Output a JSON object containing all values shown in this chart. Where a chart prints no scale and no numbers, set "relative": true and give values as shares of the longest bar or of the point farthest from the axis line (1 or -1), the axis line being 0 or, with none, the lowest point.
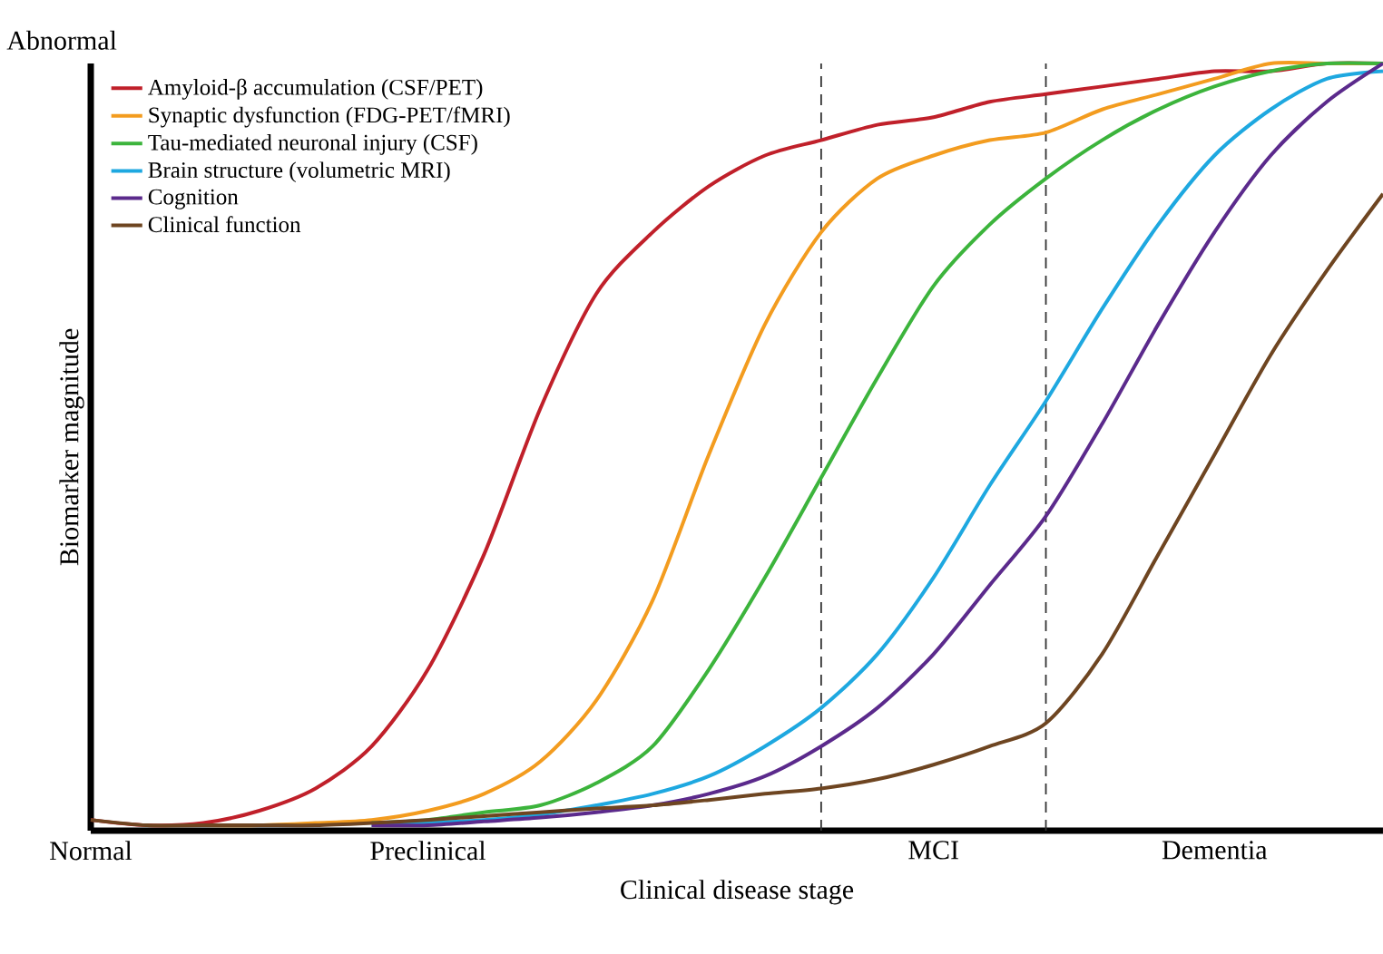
{
  "chart_data": {
    "type": "line",
    "relative": true,
    "xlabel": "Clinical disease stage",
    "ylabel": "Biomarker magnitude",
    "annotations": [
      "Abnormal"
    ],
    "categories": [
      "Normal",
      null,
      null,
      null,
      null,
      null,
      "Preclinical",
      null,
      null,
      null,
      null,
      null,
      null,
      null,
      null,
      "MCI",
      null,
      null,
      null,
      null,
      "Dementia",
      null,
      null,
      null
    ],
    "legend": "top left",
    "marker": "none",
    "line_style": "solid",
    "series": [
      {
        "name": "Amyloid-β accumulation (CSF/PET)",
        "color": "#c0202a",
        "values": [
          0.014,
          0.007,
          0.01,
          0.026,
          0.055,
          0.11,
          0.21,
          0.36,
          0.55,
          0.7,
          0.78,
          0.84,
          0.88,
          0.9,
          0.92,
          0.93,
          0.95,
          0.96,
          0.97,
          0.98,
          0.99,
          0.99,
          1.0,
          1.0
        ]
      },
      {
        "name": "Synaptic dysfunction (FDG-PET/fMRI)",
        "color": "#f39c1f",
        "values": [
          null,
          null,
          0.007,
          0.007,
          0.01,
          0.014,
          0.026,
          0.048,
          0.09,
          0.17,
          0.3,
          0.49,
          0.66,
          0.78,
          0.85,
          0.88,
          0.9,
          0.91,
          0.94,
          0.96,
          0.98,
          1.0,
          1.0,
          1.0
        ]
      },
      {
        "name": "Tau-mediated neuronal injury (CSF)",
        "color": "#3cb43c",
        "values": [
          null,
          null,
          null,
          null,
          null,
          0.01,
          0.014,
          0.024,
          0.033,
          0.062,
          0.11,
          0.21,
          0.33,
          0.46,
          0.59,
          0.71,
          0.79,
          0.85,
          0.9,
          0.94,
          0.97,
          0.99,
          1.0,
          1.0
        ]
      },
      {
        "name": "Brain structure (volumetric MRI)",
        "color": "#1ea8e0",
        "values": [
          null,
          null,
          null,
          null,
          null,
          0.007,
          0.01,
          0.014,
          0.021,
          0.033,
          0.048,
          0.071,
          0.11,
          0.16,
          0.23,
          0.33,
          0.45,
          0.56,
          0.68,
          0.79,
          0.88,
          0.94,
          0.98,
          0.99
        ]
      },
      {
        "name": "Cognition",
        "color": "#5b2a8c",
        "values": [
          null,
          null,
          null,
          null,
          null,
          0.007,
          0.007,
          0.012,
          0.017,
          0.024,
          0.033,
          0.048,
          0.071,
          0.11,
          0.16,
          0.23,
          0.32,
          0.41,
          0.53,
          0.66,
          0.78,
          0.88,
          0.95,
          1.0
        ]
      },
      {
        "name": "Clinical function",
        "color": "#6e4521",
        "values": [
          0.014,
          0.007,
          0.007,
          0.007,
          0.007,
          0.01,
          0.014,
          0.019,
          0.024,
          0.029,
          0.033,
          0.04,
          0.048,
          0.055,
          0.067,
          0.086,
          0.11,
          0.14,
          0.23,
          0.36,
          0.49,
          0.62,
          0.73,
          0.83
        ]
      }
    ]
  }
}
